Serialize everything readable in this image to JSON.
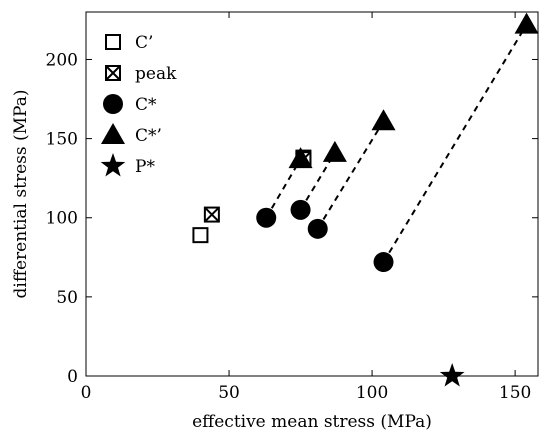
{
  "chart_data": {
    "type": "scatter",
    "xlabel": "effective mean stress (MPa)",
    "ylabel": "differential stress (MPa)",
    "xlim": [
      0,
      158
    ],
    "ylim": [
      0,
      230
    ],
    "xticks": [
      0,
      50,
      100,
      150
    ],
    "yticks": [
      0,
      50,
      100,
      150,
      200
    ],
    "grid": false,
    "legend_position": "top-left",
    "series": [
      {
        "name": "C’",
        "marker": "open-square",
        "points": [
          [
            40,
            89
          ],
          [
            76,
            138
          ]
        ]
      },
      {
        "name": "peak",
        "marker": "crossed-square",
        "points": [
          [
            44,
            102
          ],
          [
            76,
            137
          ]
        ]
      },
      {
        "name": "C*",
        "marker": "filled-circle",
        "points": [
          [
            63,
            100
          ],
          [
            75,
            105
          ],
          [
            81,
            93
          ],
          [
            104,
            72
          ]
        ]
      },
      {
        "name": "C*’",
        "marker": "filled-triangle",
        "points": [
          [
            75,
            137
          ],
          [
            87,
            141
          ],
          [
            104,
            161
          ],
          [
            154,
            222
          ]
        ]
      },
      {
        "name": "P*",
        "marker": "filled-star",
        "points": [
          [
            128,
            0
          ]
        ]
      }
    ],
    "dashed_lines": [
      {
        "from": [
          63,
          100
        ],
        "to": [
          75,
          137
        ]
      },
      {
        "from": [
          75,
          105
        ],
        "to": [
          87,
          141
        ]
      },
      {
        "from": [
          81,
          93
        ],
        "to": [
          104,
          161
        ]
      },
      {
        "from": [
          104,
          72
        ],
        "to": [
          154,
          222
        ]
      }
    ]
  }
}
